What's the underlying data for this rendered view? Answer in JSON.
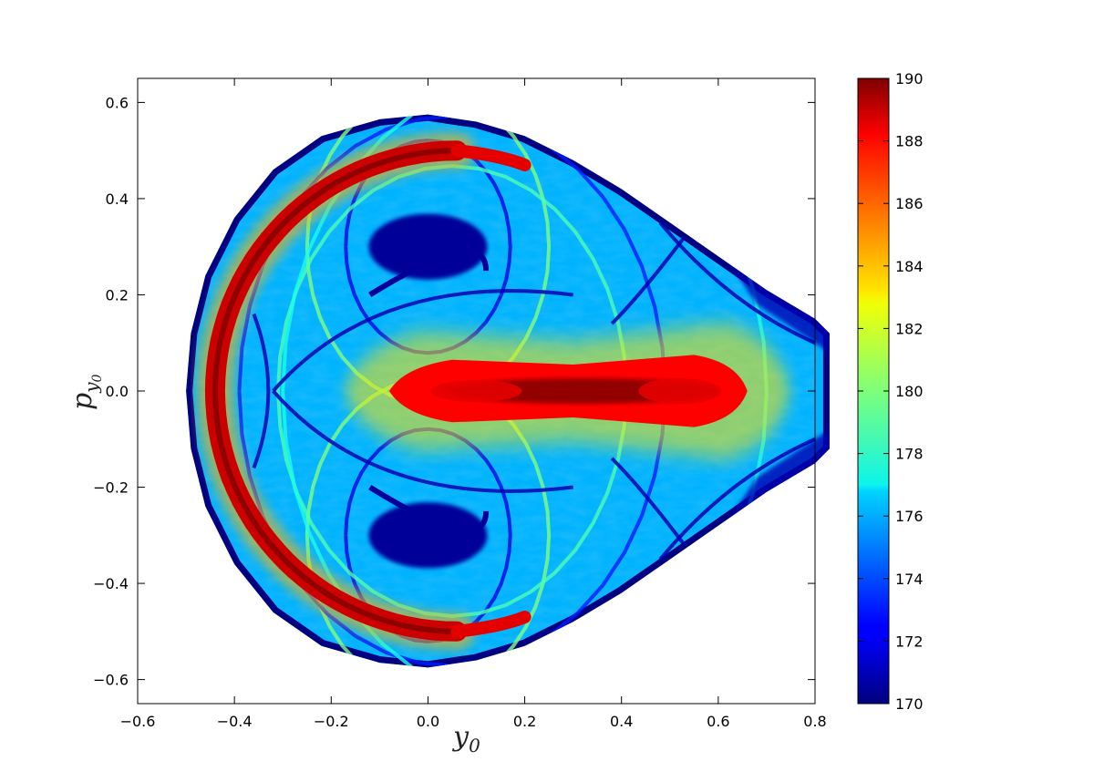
{
  "chart_data": {
    "type": "heatmap",
    "xlabel": "y",
    "xlabel_sub": "0",
    "ylabel": "p",
    "ylabel_sub": "y",
    "ylabel_subsub": "0",
    "xlim": [
      -0.6,
      0.8
    ],
    "ylim": [
      -0.65,
      0.65
    ],
    "x_ticks": [
      "−0.6",
      "−0.4",
      "−0.2",
      "0.0",
      "0.2",
      "0.4",
      "0.6",
      "0.8"
    ],
    "x_tick_values": [
      -0.6,
      -0.4,
      -0.2,
      0.0,
      0.2,
      0.4,
      0.6,
      0.8
    ],
    "y_ticks": [
      "−0.6",
      "−0.4",
      "−0.2",
      "0.0",
      "0.2",
      "0.4",
      "0.6"
    ],
    "y_tick_values": [
      -0.6,
      -0.4,
      -0.2,
      0.0,
      0.2,
      0.4,
      0.6
    ],
    "colorbar": {
      "range": [
        170,
        190
      ],
      "ticks": [
        "170",
        "172",
        "174",
        "176",
        "178",
        "180",
        "182",
        "184",
        "186",
        "188",
        "190"
      ],
      "tick_values": [
        170,
        172,
        174,
        176,
        178,
        180,
        182,
        184,
        186,
        188,
        190
      ],
      "colormap": "jet"
    },
    "regions": [
      {
        "kind": "outer-crescent",
        "value": 189,
        "y_range": [
          -0.45,
          0.2
        ],
        "py_range": [
          -0.51,
          0.51
        ]
      },
      {
        "kind": "central-core",
        "value": 190,
        "y_range": [
          -0.07,
          0.66
        ],
        "py_range": [
          -0.06,
          0.06
        ]
      },
      {
        "kind": "island-upper",
        "value": 170,
        "center": [
          0.0,
          0.3
        ]
      },
      {
        "kind": "island-lower",
        "value": 170,
        "center": [
          0.0,
          -0.3
        ]
      },
      {
        "kind": "chaotic-sea",
        "value_range": [
          172,
          184
        ]
      }
    ],
    "grid": false,
    "legend": "colorbar-right"
  }
}
